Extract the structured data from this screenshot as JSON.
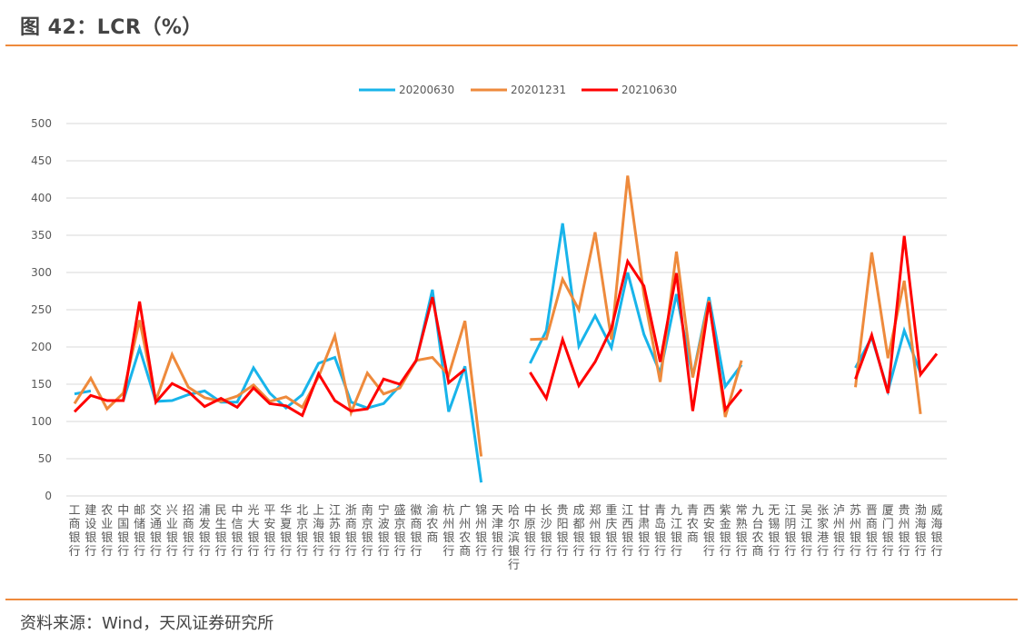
{
  "header": {
    "title": "图 42：LCR（%）"
  },
  "footer": {
    "source": "资料来源：Wind，天风证券研究所"
  },
  "colors": {
    "accent_rule": "#ee8a3c",
    "s20200630": "#18b4ea",
    "s20201231": "#ee8a3c",
    "s20210630": "#ff0000",
    "grid": "#d9d9d9"
  },
  "chart_data": {
    "type": "line",
    "title": "LCR（%）",
    "xlabel": "",
    "ylabel": "",
    "ylim": [
      0,
      500
    ],
    "yticks": [
      0,
      50,
      100,
      150,
      200,
      250,
      300,
      350,
      400,
      450,
      500
    ],
    "grid": true,
    "legend_position": "top",
    "categories": [
      "工商银行",
      "建设银行",
      "农业银行",
      "中国银行",
      "邮储银行",
      "交通银行",
      "兴业银行",
      "招商银行",
      "浦发银行",
      "民生银行",
      "中信银行",
      "光大银行",
      "平安银行",
      "华夏银行",
      "北京银行",
      "上海银行",
      "江苏银行",
      "浙商银行",
      "南京银行",
      "宁波银行",
      "盛京银行",
      "徽商银行",
      "渝农商",
      "杭州银行",
      "广州农商",
      "锦州银行",
      "天津银行",
      "哈尔滨银行",
      "中原银行",
      "长沙银行",
      "贵阳银行",
      "成都银行",
      "郑州银行",
      "重庆银行",
      "江西银行",
      "甘肃银行",
      "青岛银行",
      "九江银行",
      "青农商",
      "西安银行",
      "紫金银行",
      "常熟银行",
      "九台农商",
      "无锡银行",
      "江阴银行",
      "吴江银行",
      "张家港行",
      "泸州银行",
      "苏州银行",
      "晋商银行",
      "厦门银行",
      "贵州银行",
      "渤海银行",
      "威海银行"
    ],
    "series": [
      {
        "name": "20200630",
        "color": "#18b4ea",
        "values": [
          137,
          141,
          null,
          128,
          198,
          127,
          128,
          136,
          141,
          126,
          126,
          172,
          138,
          118,
          136,
          178,
          186,
          126,
          118,
          124,
          148,
          181,
          277,
          113,
          174,
          18,
          null,
          null,
          178,
          222,
          366,
          201,
          242,
          199,
          300,
          217,
          165,
          271,
          160,
          267,
          147,
          176,
          null,
          null,
          null,
          null,
          null,
          null,
          172,
          213,
          141,
          222,
          165,
          null
        ]
      },
      {
        "name": "20201231",
        "color": "#ee8a3c",
        "values": [
          124,
          158,
          117,
          138,
          236,
          128,
          190,
          146,
          132,
          127,
          134,
          149,
          127,
          133,
          119,
          160,
          215,
          112,
          165,
          137,
          145,
          182,
          186,
          162,
          235,
          53,
          null,
          null,
          210,
          211,
          291,
          250,
          354,
          210,
          430,
          270,
          153,
          328,
          159,
          262,
          106,
          182,
          null,
          null,
          null,
          null,
          null,
          null,
          146,
          327,
          185,
          289,
          110,
          null
        ]
      },
      {
        "name": "20210630",
        "color": "#ff0000",
        "values": [
          113,
          135,
          128,
          128,
          261,
          126,
          151,
          140,
          120,
          131,
          119,
          145,
          124,
          121,
          108,
          164,
          128,
          114,
          117,
          157,
          150,
          182,
          267,
          152,
          170,
          null,
          null,
          null,
          166,
          131,
          210,
          148,
          180,
          225,
          315,
          282,
          180,
          299,
          114,
          260,
          116,
          143,
          null,
          null,
          null,
          null,
          null,
          null,
          157,
          216,
          138,
          349,
          163,
          191
        ]
      }
    ]
  }
}
